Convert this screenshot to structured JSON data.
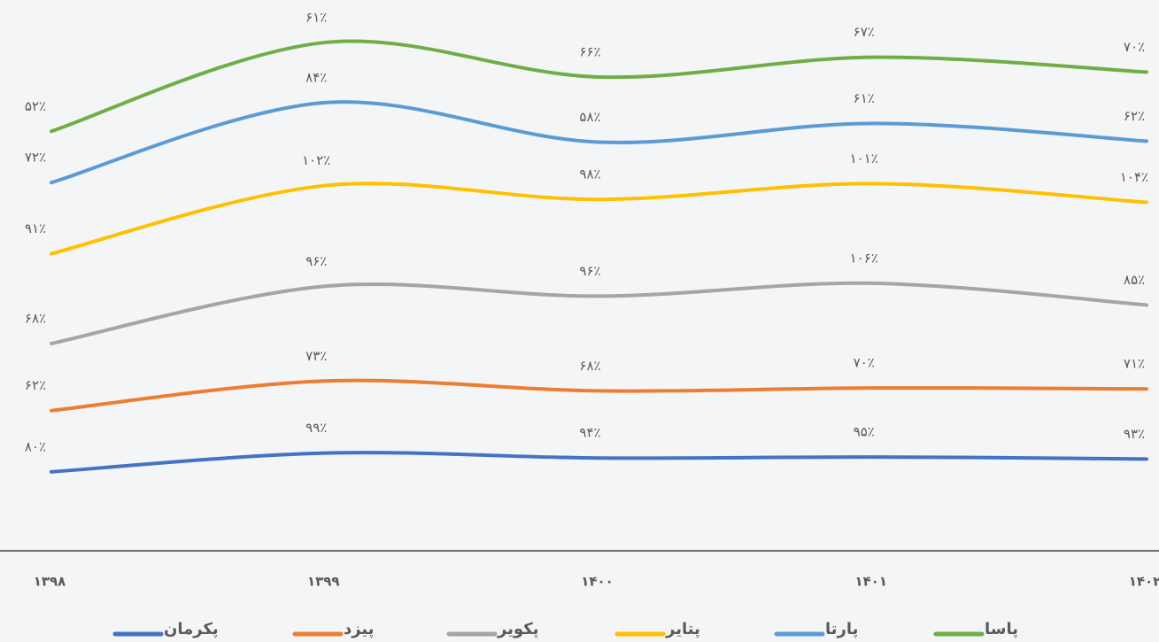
{
  "chart_data": {
    "type": "stacked-line",
    "categories": [
      "۱۳۹۸",
      "۱۳۹۹",
      "۱۴۰۰",
      "۱۴۰۱",
      "۱۴۰۲"
    ],
    "ylim": [
      0,
      558
    ],
    "series": [
      {
        "name": "پکرمان",
        "color": "#4472c4",
        "values": [
          80,
          99,
          94,
          95,
          93
        ],
        "value_labels": [
          "۸۰٪",
          "۹۹٪",
          "۹۴٪",
          "۹۵٪",
          "۹۳٪"
        ]
      },
      {
        "name": "پیزد",
        "color": "#ed7d31",
        "values": [
          62,
          73,
          68,
          70,
          71
        ],
        "value_labels": [
          "۶۲٪",
          "۷۳٪",
          "۶۸٪",
          "۷۰٪",
          "۷۱٪"
        ]
      },
      {
        "name": "پکویر",
        "color": "#a5a5a5",
        "values": [
          68,
          96,
          96,
          106,
          85
        ],
        "value_labels": [
          "۶۸٪",
          "۹۶٪",
          "۹۶٪",
          "۱۰۶٪",
          "۸۵٪"
        ]
      },
      {
        "name": "پتایر",
        "color": "#ffc000",
        "values": [
          91,
          102,
          98,
          101,
          104
        ],
        "value_labels": [
          "۹۱٪",
          "۱۰۲٪",
          "۹۸٪",
          "۱۰۱٪",
          "۱۰۴٪"
        ]
      },
      {
        "name": "پارتا",
        "color": "#5b9bd5",
        "values": [
          72,
          84,
          58,
          61,
          62
        ],
        "value_labels": [
          "۷۲٪",
          "۸۴٪",
          "۵۸٪",
          "۶۱٪",
          "۶۲٪"
        ]
      },
      {
        "name": "پاسا",
        "color": "#70ad47",
        "values": [
          52,
          61,
          66,
          67,
          70
        ],
        "value_labels": [
          "۵۲٪",
          "۶۱٪",
          "۶۶٪",
          "۶۷٪",
          "۷۰٪"
        ]
      }
    ]
  }
}
